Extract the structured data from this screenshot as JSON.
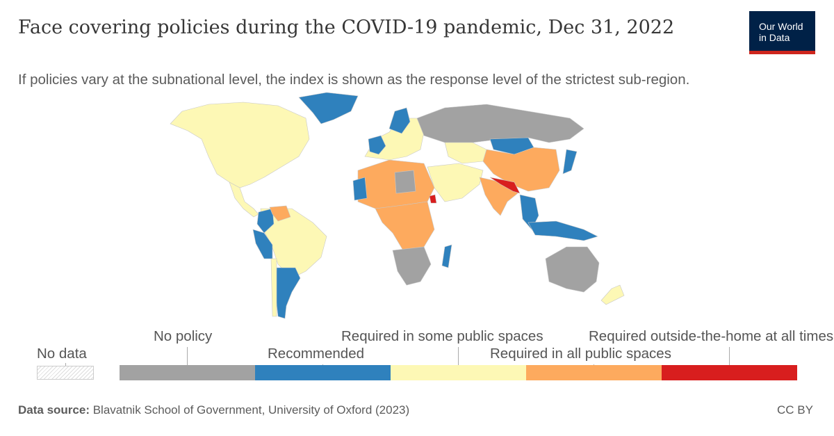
{
  "header": {
    "title": "Face covering policies during the COVID-19 pandemic, Dec 31, 2022",
    "subtitle": "If policies vary at the subnational level, the index is shown as the response level of the strictest sub-region.",
    "logo_line1": "Our World",
    "logo_line2": "in Data"
  },
  "legend": {
    "no_data": "No data",
    "categories": [
      {
        "label": "No policy",
        "color": "#a2a2a2"
      },
      {
        "label": "Recommended",
        "color": "#2f81bd"
      },
      {
        "label": "Required in some public spaces",
        "color": "#fdf8b5"
      },
      {
        "label": "Required in all public spaces",
        "color": "#fdaa5e"
      },
      {
        "label": "Required outside-the-home at all times",
        "color": "#d81e1e"
      }
    ]
  },
  "footer": {
    "source_label": "Data source:",
    "source_text": "Blavatnik School of Government, University of Oxford (2023)",
    "license": "CC BY"
  },
  "map_data": {
    "date": "Dec 31, 2022",
    "regions": [
      {
        "name": "North America",
        "category": "Required in some public spaces"
      },
      {
        "name": "Greenland",
        "category": "Recommended"
      },
      {
        "name": "Russia",
        "category": "No policy"
      },
      {
        "name": "Brazil",
        "category": "Required in some public spaces"
      },
      {
        "name": "Argentina",
        "category": "Recommended"
      },
      {
        "name": "Peru",
        "category": "Recommended"
      },
      {
        "name": "Colombia",
        "category": "Recommended"
      },
      {
        "name": "Venezuela",
        "category": "Required in all public spaces"
      },
      {
        "name": "China",
        "category": "Required in all public spaces"
      },
      {
        "name": "Mongolia",
        "category": "Recommended"
      },
      {
        "name": "India",
        "category": "Required in all public spaces"
      },
      {
        "name": "Nepal",
        "category": "Required outside-the-home at all times"
      },
      {
        "name": "Bangladesh",
        "category": "Required outside-the-home at all times"
      },
      {
        "name": "Japan",
        "category": "Recommended"
      },
      {
        "name": "Indonesia",
        "category": "Recommended"
      },
      {
        "name": "Australia",
        "category": "No policy"
      },
      {
        "name": "New Zealand",
        "category": "Required in some public spaces"
      },
      {
        "name": "Kazakhstan",
        "category": "Required in some public spaces"
      },
      {
        "name": "Madagascar",
        "category": "Recommended"
      },
      {
        "name": "Algeria",
        "category": "Required in all public spaces"
      },
      {
        "name": "Libya",
        "category": "No policy"
      },
      {
        "name": "Egypt",
        "category": "Required in all public spaces"
      },
      {
        "name": "Eritrea",
        "category": "Required outside-the-home at all times"
      },
      {
        "name": "Saudi Arabia",
        "category": "Required in some public spaces"
      },
      {
        "name": "Southern Africa",
        "category": "No policy"
      }
    ]
  }
}
